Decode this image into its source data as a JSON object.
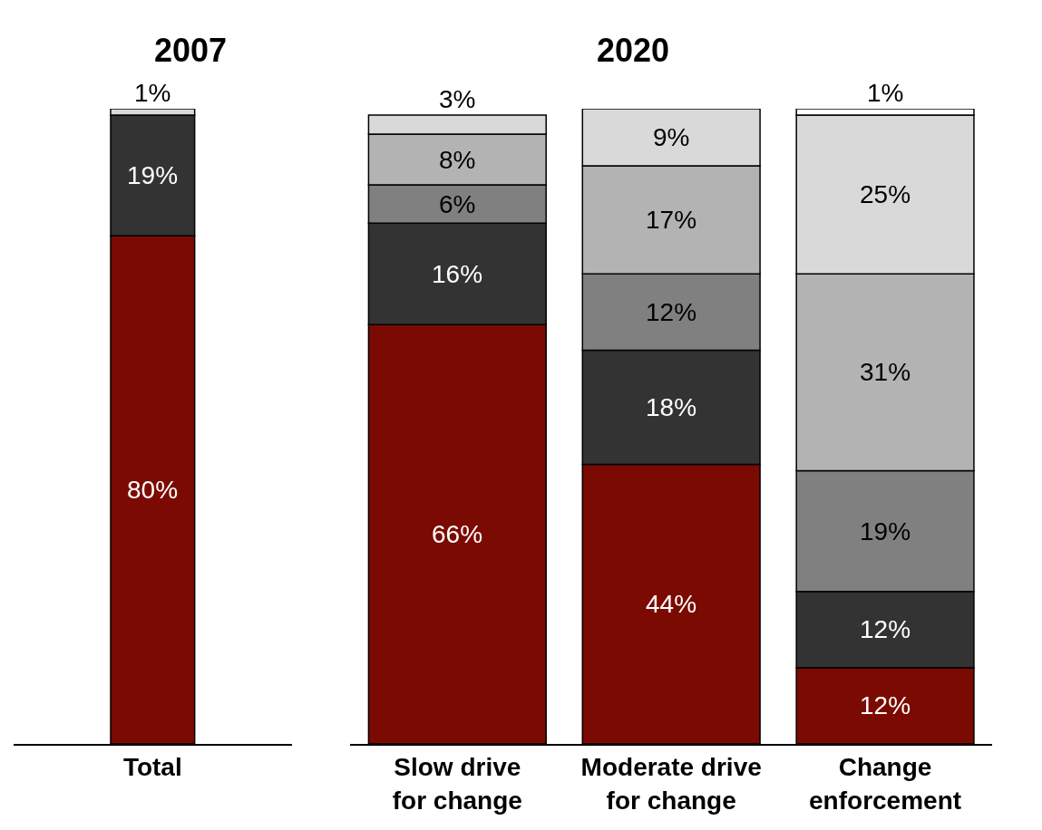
{
  "chart_data": [
    {
      "type": "bar",
      "stacked": true,
      "title": "2007",
      "categories": [
        "Total"
      ],
      "ylim": [
        0,
        100
      ],
      "tick_labels": "x",
      "series": [
        {
          "color": "#7b0a02",
          "values": [
            80
          ],
          "value_labels": [
            "80%"
          ]
        },
        {
          "color": "#333333",
          "values": [
            19
          ],
          "value_labels": [
            "19%"
          ]
        },
        {
          "color": "#808080",
          "values": [
            null
          ],
          "value_labels": [
            null
          ]
        },
        {
          "color": "#b3b3b3",
          "values": [
            null
          ],
          "value_labels": [
            null
          ]
        },
        {
          "color": "#d9d9d9",
          "values": [
            1
          ],
          "value_labels": [
            "1%"
          ]
        },
        {
          "color": "#ffffff",
          "values": [
            null
          ],
          "value_labels": [
            null
          ]
        }
      ]
    },
    {
      "type": "bar",
      "stacked": true,
      "title": "2020",
      "categories": [
        "Slow drive for change",
        "Moderate drive for change",
        "Change enforcement"
      ],
      "ylim": [
        0,
        100
      ],
      "tick_labels": "x",
      "series": [
        {
          "color": "#7b0a02",
          "values": [
            66,
            44,
            12
          ],
          "value_labels": [
            "66%",
            "44%",
            "12%"
          ]
        },
        {
          "color": "#333333",
          "values": [
            16,
            18,
            12
          ],
          "value_labels": [
            "16%",
            "18%",
            "12%"
          ]
        },
        {
          "color": "#808080",
          "values": [
            6,
            12,
            19
          ],
          "value_labels": [
            "6%",
            "12%",
            "19%"
          ]
        },
        {
          "color": "#b3b3b3",
          "values": [
            8,
            17,
            31
          ],
          "value_labels": [
            "8%",
            "17%",
            "31%"
          ]
        },
        {
          "color": "#d9d9d9",
          "values": [
            3,
            9,
            25
          ],
          "value_labels": [
            "3%",
            "9%",
            "25%"
          ]
        },
        {
          "color": "#ffffff",
          "values": [
            null,
            null,
            1
          ],
          "value_labels": [
            null,
            null,
            "1%"
          ]
        }
      ]
    }
  ]
}
